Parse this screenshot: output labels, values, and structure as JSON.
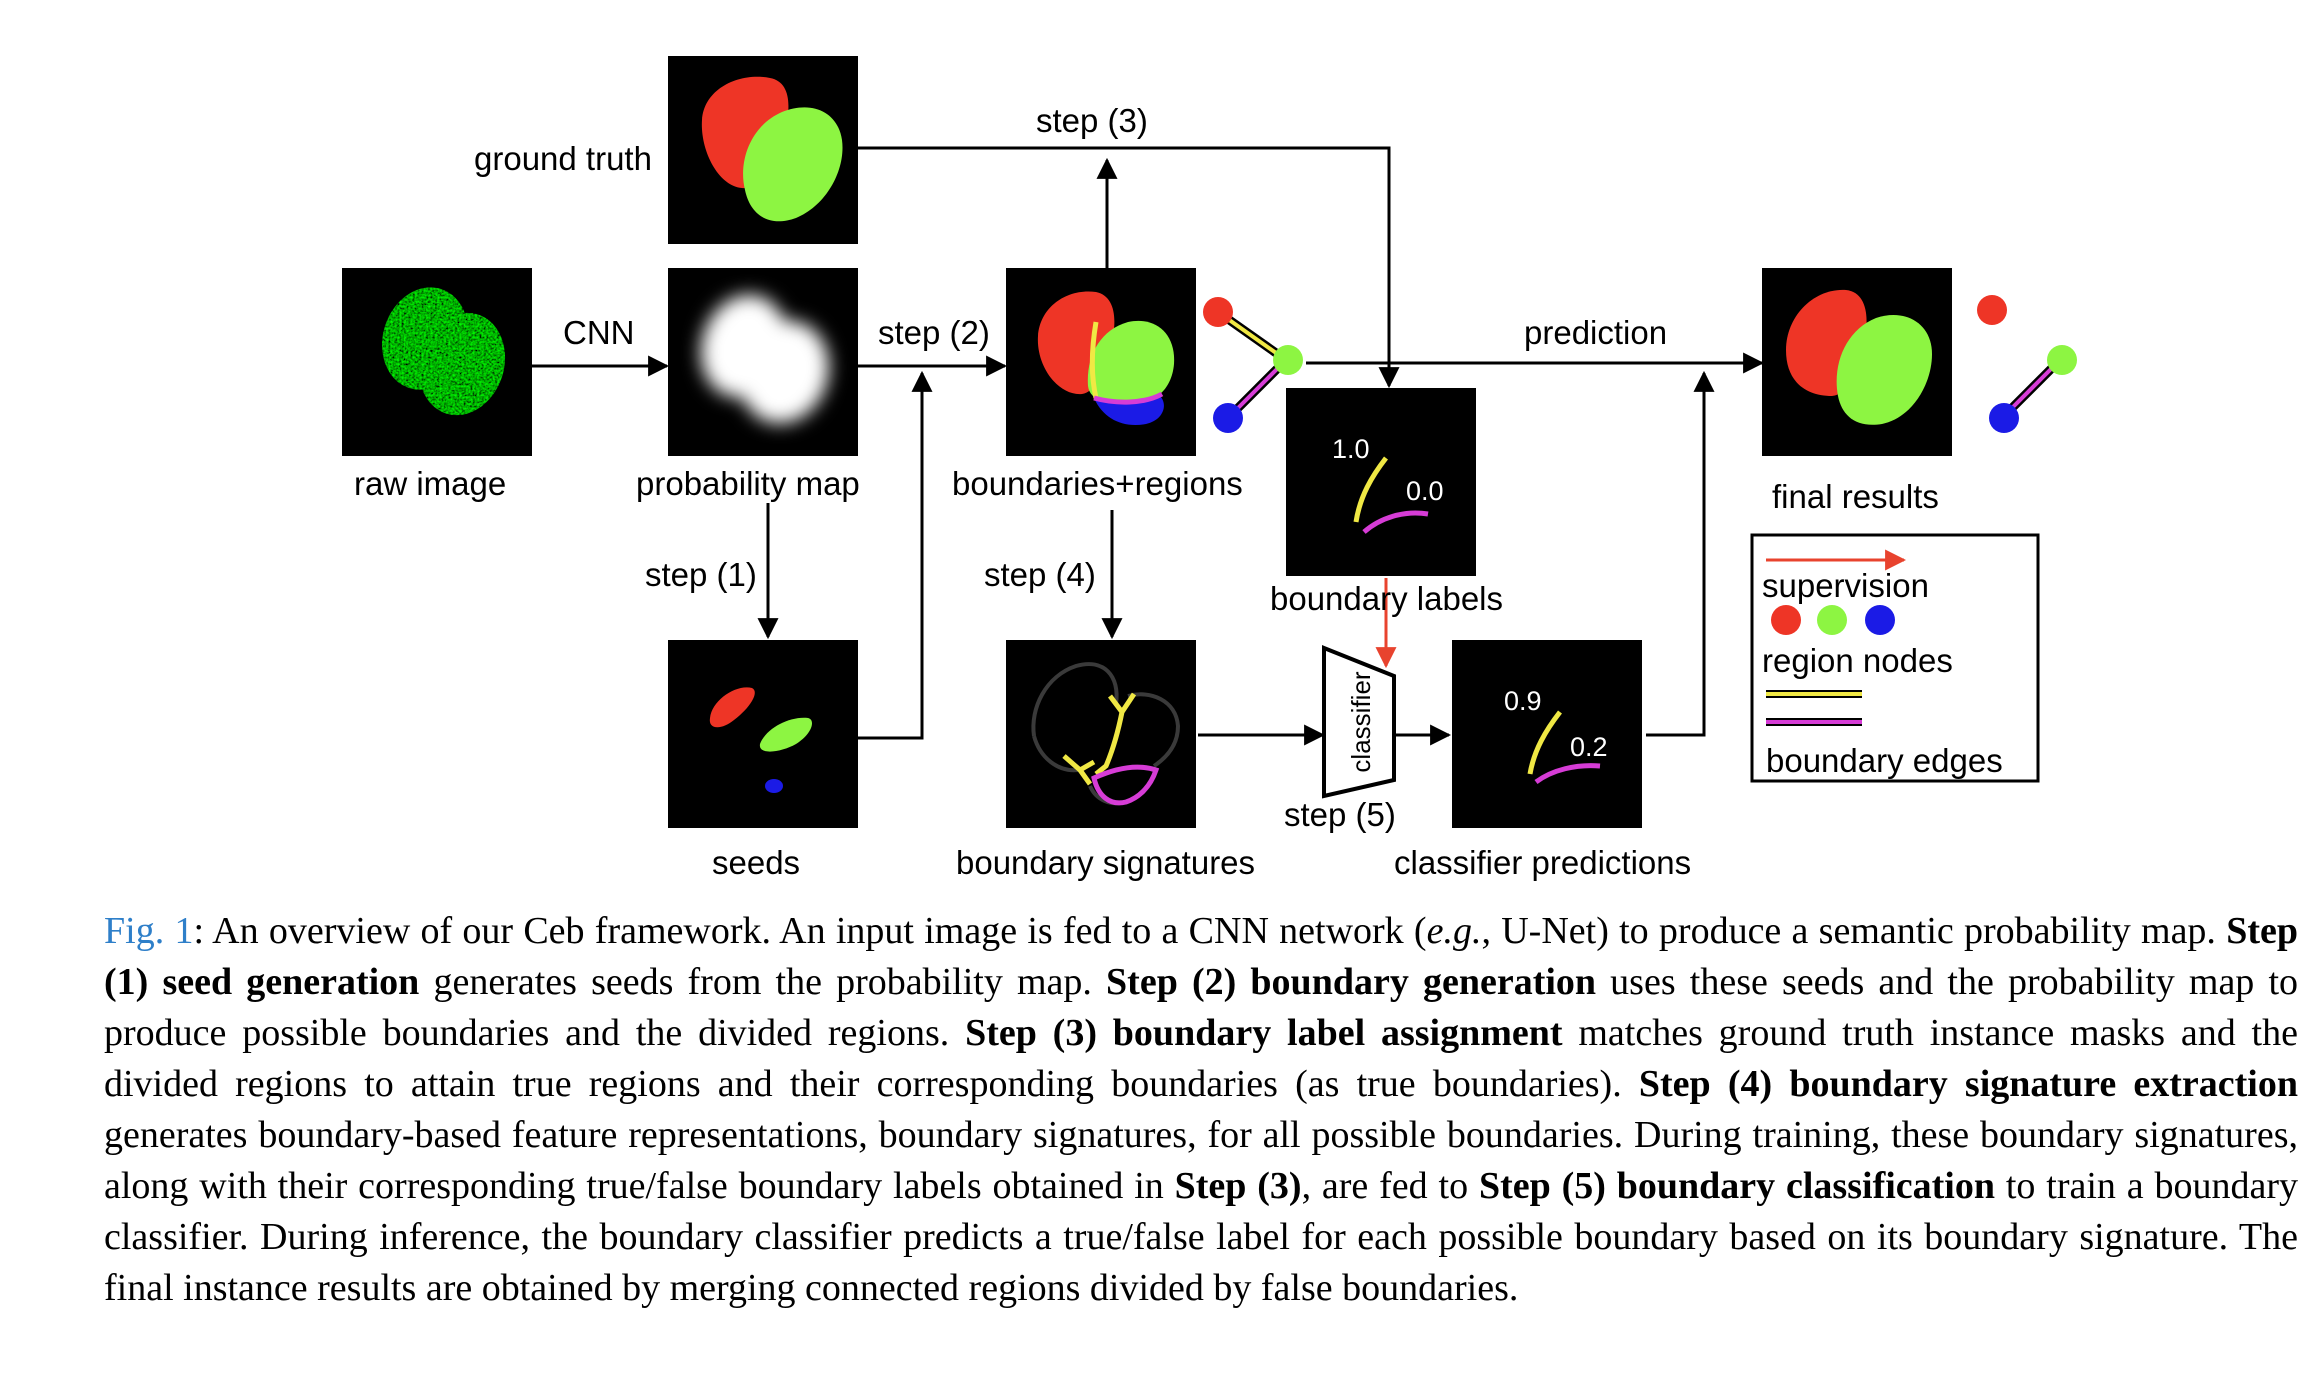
{
  "labels": {
    "ground_truth": "ground truth",
    "raw_image": "raw image",
    "probability_map": "probability map",
    "boundaries_regions": "boundaries+regions",
    "final_results": "final results",
    "boundary_labels": "boundary labels",
    "seeds": "seeds",
    "boundary_signatures": "boundary signatures",
    "classifier_predictions": "classifier predictions",
    "classifier": "classifier"
  },
  "arrows": {
    "cnn": "CNN",
    "step1": "step (1)",
    "step2": "step (2)",
    "step3": "step (3)",
    "step4": "step (4)",
    "step5": "step (5)",
    "prediction": "prediction"
  },
  "values": {
    "label_yellow": "1.0",
    "label_magenta": "0.0",
    "pred_yellow": "0.9",
    "pred_magenta": "0.2"
  },
  "legend": {
    "supervision": "supervision",
    "region_nodes": "region nodes",
    "boundary_edges": "boundary edges"
  },
  "colors": {
    "red_region": "#ee3526",
    "green_region": "#8df542",
    "blue_region": "#1b1be6",
    "yellow_boundary": "#f0e844",
    "magenta_boundary": "#d63cd6",
    "supervision_arrow": "#e8432e",
    "figure_ref": "#2e7fc9"
  },
  "caption": {
    "fig_label": "Fig. 1",
    "p1": ": An overview of our Ceb framework. An input image is fed to a CNN network (",
    "eg": "e.g.",
    "p2": ", U-Net) to produce a semantic probability map. ",
    "s1": "Step (1) seed generation",
    "p3": " generates seeds from the probability map. ",
    "s2": "Step (2) boundary generation",
    "p4": " uses these seeds and the probability map to produce possible boundaries and the divided regions. ",
    "s3": "Step (3) boundary label assignment",
    "p5": " matches ground truth instance masks and the divided regions to attain true regions and their corresponding boundaries (as true boundaries). ",
    "s4": "Step (4) boundary signature extraction",
    "p6": " generates boundary-based feature representations, boundary signatures, for all possible boundaries. During training, these boundary signatures, along with their corresponding true/false boundary labels obtained in ",
    "s3b": "Step (3)",
    "p7": ", are fed to ",
    "s5": "Step (5) boundary classification",
    "p8": " to train a boundary classifier. During inference, the boundary classifier predicts a true/false label for each possible boundary based on its boundary signature. The final instance results are obtained by merging connected regions divided by false boundaries."
  }
}
